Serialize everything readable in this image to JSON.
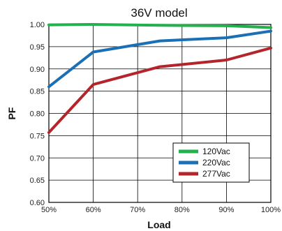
{
  "chart_data": {
    "type": "line",
    "title": "36V model",
    "xlabel": "Load",
    "ylabel": "PF",
    "x": [
      50,
      60,
      75,
      90,
      100
    ],
    "x_ticks": [
      50,
      60,
      70,
      80,
      90,
      100
    ],
    "x_tick_labels": [
      "50%",
      "60%",
      "70%",
      "80%",
      "90%",
      "100%"
    ],
    "xlim": [
      50,
      100
    ],
    "ylim": [
      0.6,
      1.0
    ],
    "y_ticks": [
      0.6,
      0.65,
      0.7,
      0.75,
      0.8,
      0.85,
      0.9,
      0.95,
      1.0
    ],
    "y_tick_labels": [
      "0.60",
      "0.65",
      "0.70",
      "0.75",
      "0.80",
      "0.85",
      "0.90",
      "0.95",
      "1.00"
    ],
    "grid": true,
    "legend_position": "bottom-right",
    "series": [
      {
        "name": "120Vac",
        "color": "#22b14c",
        "values": [
          0.999,
          1.0,
          0.998,
          0.997,
          0.993
        ]
      },
      {
        "name": "220Vac",
        "color": "#1a6fb5",
        "values": [
          0.86,
          0.938,
          0.963,
          0.97,
          0.985
        ]
      },
      {
        "name": "277Vac",
        "color": "#b3252b",
        "values": [
          0.757,
          0.865,
          0.905,
          0.92,
          0.947
        ]
      }
    ]
  }
}
